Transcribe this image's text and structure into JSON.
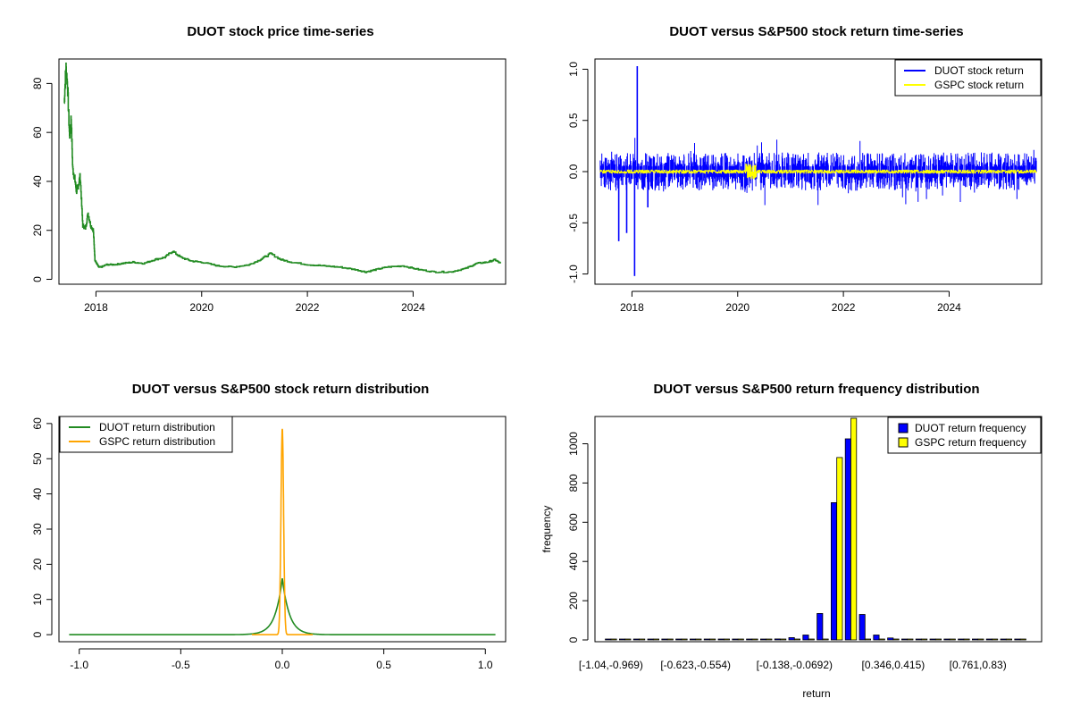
{
  "chart_data": [
    {
      "type": "line",
      "title": "DUOT stock price time-series",
      "xlabel": "",
      "ylabel": "",
      "x_ticks": [
        "2018",
        "2020",
        "2022",
        "2024"
      ],
      "y_ticks": [
        "0",
        "20",
        "40",
        "60",
        "80"
      ],
      "xlim": [
        2017.3,
        2025.75
      ],
      "ylim": [
        -2,
        90
      ],
      "series": [
        {
          "color": "#228B22",
          "x": [
            2017.4,
            2017.43,
            2017.46,
            2017.5,
            2017.53,
            2017.56,
            2017.6,
            2017.63,
            2017.66,
            2017.7,
            2017.75,
            2017.8,
            2017.85,
            2017.9,
            2017.95,
            2017.98,
            2018.0,
            2018.05,
            2018.1,
            2018.2,
            2018.35,
            2018.5,
            2018.7,
            2018.9,
            2019.1,
            2019.3,
            2019.45,
            2019.6,
            2019.8,
            2020.0,
            2020.3,
            2020.6,
            2020.9,
            2021.1,
            2021.3,
            2021.5,
            2021.7,
            2022.0,
            2022.3,
            2022.6,
            2022.9,
            2023.1,
            2023.3,
            2023.5,
            2023.8,
            2024.1,
            2024.4,
            2024.7,
            2025.0,
            2025.2,
            2025.4,
            2025.55,
            2025.65
          ],
          "y": [
            72,
            87,
            80,
            58,
            66,
            45,
            41,
            36,
            38,
            42,
            22,
            21,
            27,
            22,
            20,
            8,
            7,
            5,
            5,
            6,
            6,
            6.5,
            7,
            6.5,
            8,
            9,
            11.5,
            9,
            7.5,
            7,
            5.5,
            5,
            6,
            8,
            10.5,
            8,
            7,
            6,
            5.5,
            5,
            4,
            3,
            4,
            5,
            5.5,
            4,
            3,
            3,
            4.5,
            6.5,
            7,
            8,
            6.5
          ]
        }
      ]
    },
    {
      "type": "line",
      "title": "DUOT versus S&P500 stock return time-series",
      "xlabel": "",
      "ylabel": "",
      "x_ticks": [
        "2018",
        "2020",
        "2022",
        "2024"
      ],
      "y_ticks": [
        "-1.0",
        "-0.5",
        "0.0",
        "0.5",
        "1.0"
      ],
      "xlim": [
        2017.3,
        2025.75
      ],
      "ylim": [
        -1.1,
        1.1
      ],
      "legend": {
        "position": "top-right",
        "entries": [
          "DUOT stock return",
          "GSPC stock return"
        ]
      },
      "series": [
        {
          "name": "DUOT stock return",
          "color": "#0000FF",
          "spikes_x": [
            2017.75,
            2017.9,
            2018.05,
            2018.1,
            2018.3
          ],
          "spikes_y": [
            -0.68,
            -0.6,
            -1.02,
            1.03,
            -0.35
          ]
        },
        {
          "name": "GSPC stock return",
          "color": "#FFFF00"
        }
      ]
    },
    {
      "type": "line",
      "title": "DUOT versus S&P500 stock return distribution",
      "xlabel": "",
      "ylabel": "",
      "x_ticks": [
        "-1.0",
        "-0.5",
        "0.0",
        "0.5",
        "1.0"
      ],
      "y_ticks": [
        "0",
        "10",
        "20",
        "30",
        "40",
        "50",
        "60"
      ],
      "xlim": [
        -1.1,
        1.1
      ],
      "ylim": [
        -2,
        62
      ],
      "legend": {
        "position": "top-left",
        "entries": [
          "DUOT return distribution",
          "GSPC return distribution"
        ]
      },
      "series": [
        {
          "name": "DUOT return distribution",
          "color": "#228B22",
          "peak": 16,
          "x_range": [
            -1.05,
            1.05
          ]
        },
        {
          "name": "GSPC return distribution",
          "color": "#FFA500",
          "peak": 58.5,
          "x_range": [
            -0.15,
            0.15
          ]
        }
      ]
    },
    {
      "type": "bar",
      "title": "DUOT versus S&P500 return frequency distribution",
      "xlabel": "return",
      "ylabel": "frequency",
      "y_ticks": [
        "0",
        "200",
        "400",
        "600",
        "800",
        "1000"
      ],
      "x_tick_labels": [
        "[-1.04,-0.969)",
        "[-0.623,-0.554)",
        "[-0.138,-0.0692)",
        "[0.346,0.415)",
        "[0.761,0.83)"
      ],
      "x_tick_bin_index": [
        0,
        6,
        13,
        20,
        26
      ],
      "ylim": [
        0,
        1130
      ],
      "legend": {
        "position": "top-right",
        "entries": [
          "DUOT return frequency",
          "GSPC return frequency"
        ]
      },
      "series": [
        {
          "name": "DUOT return frequency",
          "color": "#0000FF",
          "values": [
            3,
            1,
            1,
            1,
            1,
            2,
            3,
            2,
            1,
            1,
            1,
            1,
            5,
            12,
            25,
            135,
            700,
            1025,
            130,
            25,
            10,
            4,
            2,
            1,
            1,
            1,
            1,
            1,
            1,
            1
          ]
        },
        {
          "name": "GSPC return frequency",
          "color": "#FFFF00",
          "values": [
            0,
            0,
            0,
            0,
            0,
            0,
            0,
            0,
            0,
            0,
            0,
            0,
            0,
            0,
            0,
            0,
            930,
            1130,
            0,
            0,
            0,
            0,
            0,
            0,
            0,
            0,
            0,
            0,
            0,
            0
          ]
        }
      ]
    }
  ]
}
